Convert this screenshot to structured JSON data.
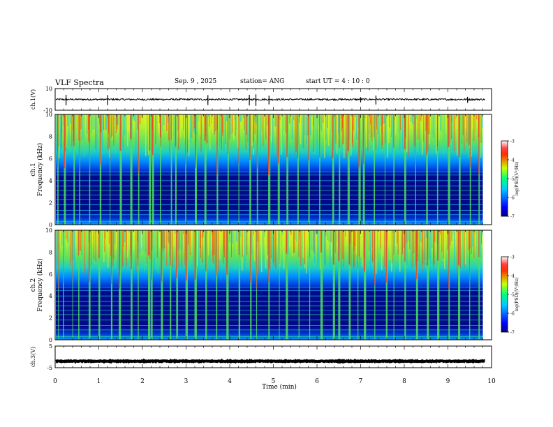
{
  "header": {
    "title": "VLF Spectra",
    "date": "Sep. 9 , 2025",
    "station": "station= ANG",
    "start": "start  UT =   4 : 10 : 0"
  },
  "chart_data": [
    {
      "type": "line",
      "name": "ch.1 waveform",
      "ylabel": "ch.1(V)",
      "ylim": [
        -10,
        10
      ],
      "yticks": [
        "10",
        "-10"
      ],
      "xlim": [
        0,
        10
      ],
      "trace": {
        "baseline": 0,
        "noise": 0.8,
        "spikes": [
          0.25,
          1.2,
          3.5,
          4.45,
          4.6,
          4.9,
          7.0,
          7.35,
          9.45
        ]
      }
    },
    {
      "type": "heatmap",
      "name": "ch.1 spectrogram",
      "ylabel": "ch.1\nFrequency (kHz)",
      "ylabel_line1": "ch.1",
      "ylabel_line2": "Frequency (kHz)",
      "ylim": [
        0,
        10
      ],
      "yticks": [
        "0",
        "2",
        "4",
        "6",
        "8",
        "10"
      ],
      "xlim": [
        0,
        9.8
      ],
      "colorbar": {
        "label": "log(PSD)(V²/Hz)",
        "ticks": [
          "-3",
          "-4",
          "-5",
          "-6",
          "-7"
        ],
        "range": [
          -7,
          -3
        ]
      }
    },
    {
      "type": "heatmap",
      "name": "ch.2 spectrogram",
      "ylabel": "ch.2\nFrequency (kHz)",
      "ylabel_line1": "ch.2",
      "ylabel_line2": "Frequency (kHz)",
      "ylim": [
        0,
        10
      ],
      "yticks": [
        "0",
        "2",
        "4",
        "6",
        "8",
        "10"
      ],
      "xlim": [
        0,
        9.8
      ],
      "colorbar": {
        "label": "log(PSD)(V²/Hz)",
        "ticks": [
          "-3",
          "-4",
          "-5",
          "-6",
          "-7"
        ],
        "range": [
          -7,
          -3
        ]
      }
    },
    {
      "type": "line",
      "name": "ch.3 waveform",
      "ylabel": "ch.3(V)",
      "ylim": [
        -5,
        5
      ],
      "yticks": [
        "5",
        "-5"
      ],
      "xlim": [
        0,
        10
      ],
      "trace": {
        "baseline": -2,
        "noise": 0.2,
        "spikes": []
      }
    }
  ],
  "xaxis": {
    "label": "Time  (min)",
    "ticks": [
      "0",
      "1",
      "2",
      "3",
      "4",
      "5",
      "6",
      "7",
      "8",
      "9",
      "10"
    ],
    "range": [
      0,
      10
    ]
  },
  "spectro_bursts": [
    0.05,
    0.2,
    0.42,
    0.55,
    0.78,
    1.02,
    1.25,
    1.48,
    1.72,
    1.9,
    2.15,
    2.22,
    2.4,
    2.65,
    2.75,
    2.98,
    3.2,
    3.42,
    3.7,
    3.95,
    4.2,
    4.45,
    4.62,
    4.88,
    5.1,
    5.3,
    5.55,
    5.8,
    6.05,
    6.35,
    6.5,
    6.7,
    6.95,
    7.05,
    7.3,
    7.55,
    7.75,
    8.0,
    8.25,
    8.5,
    8.75,
    9.0,
    9.25,
    9.5,
    9.7
  ],
  "spectro_lines_khz": [
    0.3,
    0.9,
    1.3,
    1.8,
    2.3,
    2.7,
    3.1,
    3.5,
    4.0,
    4.5,
    4.8
  ]
}
